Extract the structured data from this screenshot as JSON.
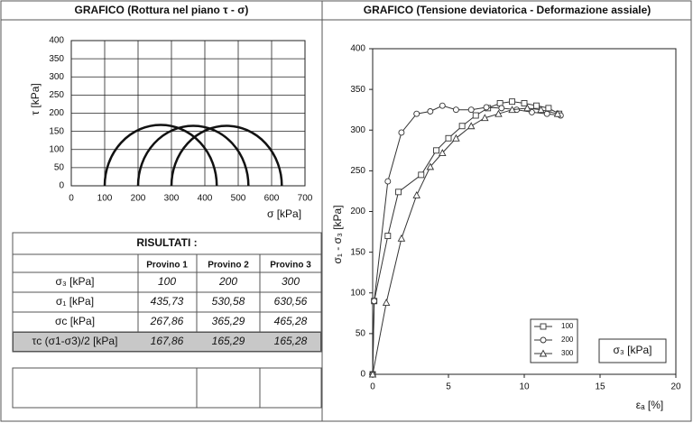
{
  "chart_data": [
    {
      "type": "mohr",
      "title": "GRAFICO (Rottura nel piano τ - σ)",
      "xlabel": "σ [kPa]",
      "ylabel": "τ [kPa]",
      "xlim": [
        0,
        700
      ],
      "xticks": [
        0,
        100,
        200,
        300,
        400,
        500,
        600,
        700
      ],
      "ylim": [
        0,
        400
      ],
      "yticks": [
        0,
        50,
        100,
        150,
        200,
        250,
        300,
        350,
        400
      ],
      "grid": true,
      "color": "#111111",
      "circles": [
        {
          "sigma3": 100,
          "sigma1": 435.73
        },
        {
          "sigma3": 200,
          "sigma1": 530.58
        },
        {
          "sigma3": 300,
          "sigma1": 630.56
        }
      ]
    },
    {
      "type": "line",
      "title": "GRAFICO (Tensione deviatorica - Deformazione assiale)",
      "xlabel": "εₐ [%]",
      "ylabel": "σ₁ - σ₃ [kPa]",
      "xlim": [
        0,
        20
      ],
      "xticks": [
        0,
        5,
        10,
        15,
        20
      ],
      "ylim": [
        0,
        400
      ],
      "yticks": [
        0,
        50,
        100,
        150,
        200,
        250,
        300,
        350,
        400
      ],
      "grid": false,
      "legend_title": "σ₃ [kPa]",
      "series": [
        {
          "name": "100",
          "marker": "square",
          "color": "#333333",
          "x": [
            0,
            0.1,
            1.0,
            1.7,
            3.2,
            4.2,
            5.0,
            5.9,
            6.8,
            7.6,
            8.4,
            9.2,
            10.0,
            10.8,
            11.6,
            12.3
          ],
          "values": [
            0,
            90,
            170,
            224,
            245,
            275,
            290,
            305,
            318,
            327,
            333,
            335,
            333,
            330,
            327,
            320
          ]
        },
        {
          "name": "200",
          "marker": "circle",
          "color": "#333333",
          "x": [
            0,
            0.1,
            1.0,
            1.9,
            2.9,
            3.8,
            4.6,
            5.5,
            6.5,
            7.5,
            8.5,
            9.5,
            10.5,
            11.5,
            12.4
          ],
          "values": [
            0,
            90,
            237,
            297,
            320,
            323,
            330,
            325,
            325,
            328,
            327,
            325,
            322,
            320,
            318
          ]
        },
        {
          "name": "300",
          "marker": "triangle",
          "color": "#333333",
          "x": [
            0,
            0.9,
            1.9,
            2.9,
            3.8,
            4.6,
            5.5,
            6.5,
            7.4,
            8.3,
            9.2,
            10.2,
            11.1,
            12.2
          ],
          "values": [
            0,
            88,
            167,
            220,
            255,
            272,
            290,
            305,
            315,
            320,
            325,
            327,
            325,
            320
          ]
        }
      ]
    }
  ],
  "table": {
    "title": "RISULTATI :",
    "columns": [
      "Provino 1",
      "Provino 2",
      "Provino 3"
    ],
    "rows": [
      {
        "label": "σ₃ [kPa]",
        "cells": [
          "100",
          "200",
          "300"
        ]
      },
      {
        "label": "σ₁ [kPa]",
        "cells": [
          "435,73",
          "530,58",
          "630,56"
        ]
      },
      {
        "label": "σc [kPa]",
        "cells": [
          "267,86",
          "365,29",
          "465,28"
        ]
      },
      {
        "label": "τc (σ1-σ3)/2 [kPa]",
        "cells": [
          "167,86",
          "165,29",
          "165,28"
        ]
      }
    ]
  }
}
